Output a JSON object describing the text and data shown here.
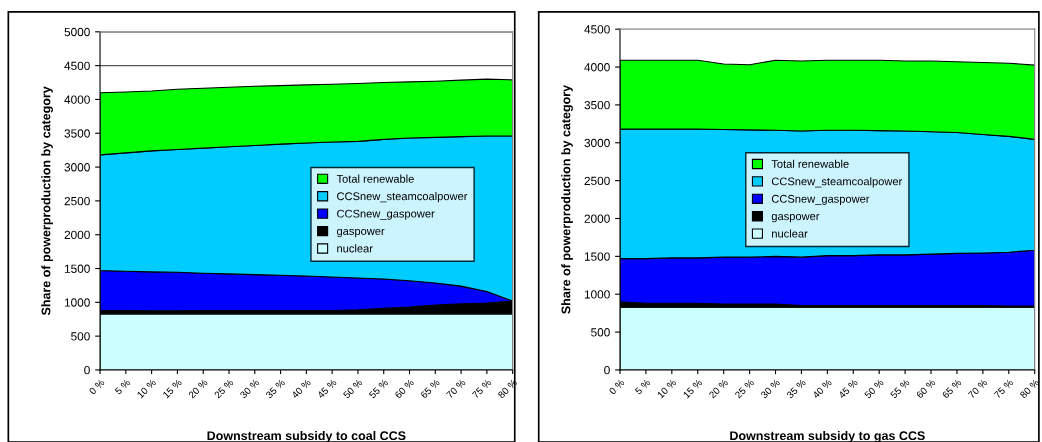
{
  "chart_data": [
    {
      "type": "area",
      "stacked": true,
      "xlabel": "Downstream subsidy to coal CCS",
      "ylabel": "Share of powerproduction by category",
      "categories": [
        "0 %",
        "5 %",
        "10 %",
        "15 %",
        "20 %",
        "25 %",
        "30 %",
        "35 %",
        "40 %",
        "45 %",
        "50 %",
        "55 %",
        "60 %",
        "65 %",
        "70 %",
        "75 %",
        "80 %"
      ],
      "ylim": [
        0,
        5000
      ],
      "yticks": [
        0,
        500,
        1000,
        1500,
        2000,
        2500,
        3000,
        3500,
        4000,
        4500,
        5000
      ],
      "grid": "y",
      "legend": "right",
      "series": [
        {
          "name": "nuclear",
          "color": "#ccffff",
          "values": [
            830,
            830,
            830,
            830,
            830,
            830,
            830,
            830,
            830,
            830,
            830,
            830,
            830,
            830,
            830,
            830,
            830
          ]
        },
        {
          "name": "gaspower",
          "color": "#000000",
          "values": [
            50,
            50,
            45,
            45,
            50,
            50,
            50,
            50,
            50,
            50,
            60,
            80,
            100,
            130,
            150,
            160,
            190
          ]
        },
        {
          "name": "CCSnew_gaspower",
          "color": "#0000ff",
          "values": [
            590,
            580,
            575,
            570,
            550,
            540,
            530,
            520,
            510,
            495,
            470,
            435,
            390,
            325,
            260,
            170,
            0
          ]
        },
        {
          "name": "CCSnew_steamcoalpower",
          "color": "#00ccff",
          "values": [
            1710,
            1750,
            1790,
            1815,
            1850,
            1880,
            1910,
            1940,
            1965,
            1995,
            2020,
            2065,
            2110,
            2155,
            2210,
            2300,
            2440
          ]
        },
        {
          "name": "Total renewable",
          "color": "#00ff00",
          "values": [
            920,
            900,
            885,
            890,
            885,
            880,
            875,
            865,
            860,
            855,
            855,
            840,
            830,
            830,
            835,
            840,
            830
          ]
        }
      ]
    },
    {
      "type": "area",
      "stacked": true,
      "xlabel": "Downstream subsidy to gas CCS",
      "ylabel": "Share of powerproduction by category",
      "categories": [
        "0 %",
        "5 %",
        "10 %",
        "15 %",
        "20 %",
        "25 %",
        "30 %",
        "35 %",
        "40 %",
        "45 %",
        "50 %",
        "55 %",
        "60 %",
        "65 %",
        "70 %",
        "75 %",
        "80 %"
      ],
      "ylim": [
        0,
        4500
      ],
      "yticks": [
        0,
        500,
        1000,
        1500,
        2000,
        2500,
        3000,
        3500,
        4000,
        4500
      ],
      "legend": "center",
      "series": [
        {
          "name": "nuclear",
          "color": "#ccffff",
          "values": [
            830,
            830,
            830,
            830,
            830,
            830,
            830,
            830,
            830,
            830,
            830,
            830,
            830,
            830,
            830,
            830,
            830
          ]
        },
        {
          "name": "gaspower",
          "color": "#000000",
          "values": [
            70,
            50,
            50,
            50,
            40,
            40,
            40,
            20,
            20,
            20,
            20,
            20,
            20,
            20,
            20,
            15,
            15
          ]
        },
        {
          "name": "CCSnew_gaspower",
          "color": "#0000ff",
          "values": [
            570,
            590,
            600,
            600,
            620,
            620,
            630,
            640,
            660,
            660,
            670,
            670,
            680,
            690,
            695,
            710,
            735
          ]
        },
        {
          "name": "CCSnew_steamcoalpower",
          "color": "#00ccff",
          "values": [
            1710,
            1710,
            1700,
            1700,
            1685,
            1680,
            1665,
            1665,
            1655,
            1655,
            1640,
            1635,
            1615,
            1595,
            1565,
            1530,
            1465
          ]
        },
        {
          "name": "Total renewable",
          "color": "#00ff00",
          "values": [
            910,
            910,
            910,
            910,
            865,
            860,
            925,
            925,
            925,
            925,
            930,
            925,
            935,
            935,
            950,
            965,
            980
          ]
        }
      ]
    }
  ]
}
